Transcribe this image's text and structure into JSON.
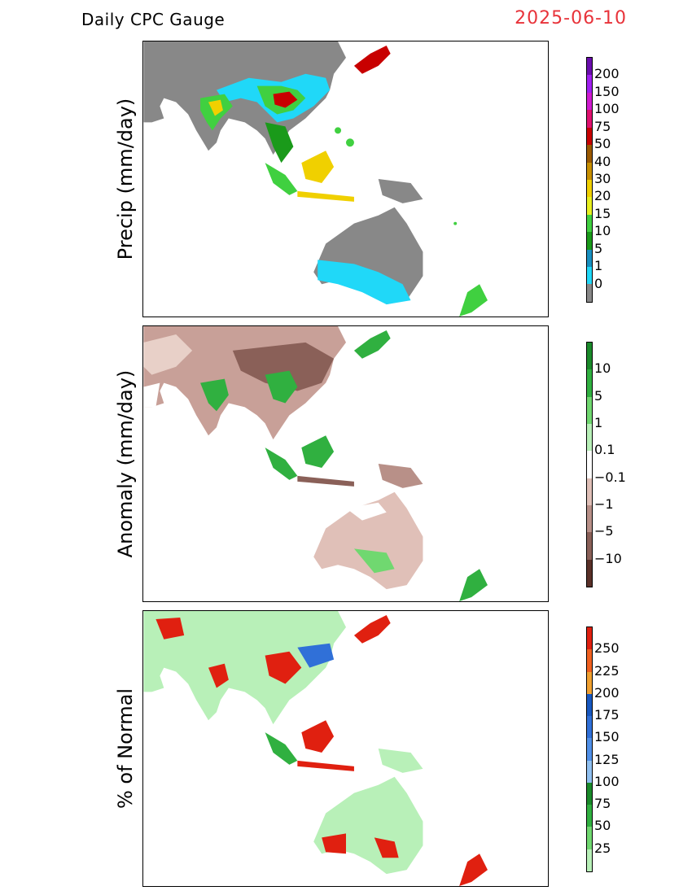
{
  "header": {
    "title": "Daily CPC Gauge",
    "date": "2025-06-10",
    "date_color": "#e8333a"
  },
  "panels": [
    {
      "id": "precip",
      "ylabel": "Precip (mm/day)",
      "colorbar": {
        "ticks": [
          "200",
          "150",
          "100",
          "75",
          "50",
          "40",
          "30",
          "20",
          "15",
          "10",
          "5",
          "1",
          "0"
        ],
        "colors": [
          "#6a0dad",
          "#a020f0",
          "#d01cd0",
          "#e0116f",
          "#c80000",
          "#9b5a00",
          "#c89000",
          "#f0d000",
          "#e8f020",
          "#40d040",
          "#1a9a1a",
          "#1890c0",
          "#20d8f8",
          "#888888"
        ]
      }
    },
    {
      "id": "anomaly",
      "ylabel": "Anomaly (mm/day)",
      "colorbar": {
        "ticks": [
          "10",
          "5",
          "1",
          "0.1",
          "−0.1",
          "−1",
          "−5",
          "−10"
        ],
        "colors": [
          "#1a8a2a",
          "#30b040",
          "#70d870",
          "#b8f0b8",
          "#ffffff",
          "#e0c0b8",
          "#b89088",
          "#8a6058",
          "#5a3028"
        ]
      }
    },
    {
      "id": "pct",
      "ylabel": "% of Normal",
      "colorbar": {
        "ticks": [
          "250",
          "225",
          "200",
          "175",
          "150",
          "125",
          "100",
          "75",
          "50",
          "25"
        ],
        "colors": [
          "#e02010",
          "#f06020",
          "#f0a030",
          "#1858c0",
          "#3070d8",
          "#5090e8",
          "#90c0f0",
          "#1a8a2a",
          "#30b040",
          "#70d870",
          "#b8f0b8"
        ]
      }
    }
  ]
}
